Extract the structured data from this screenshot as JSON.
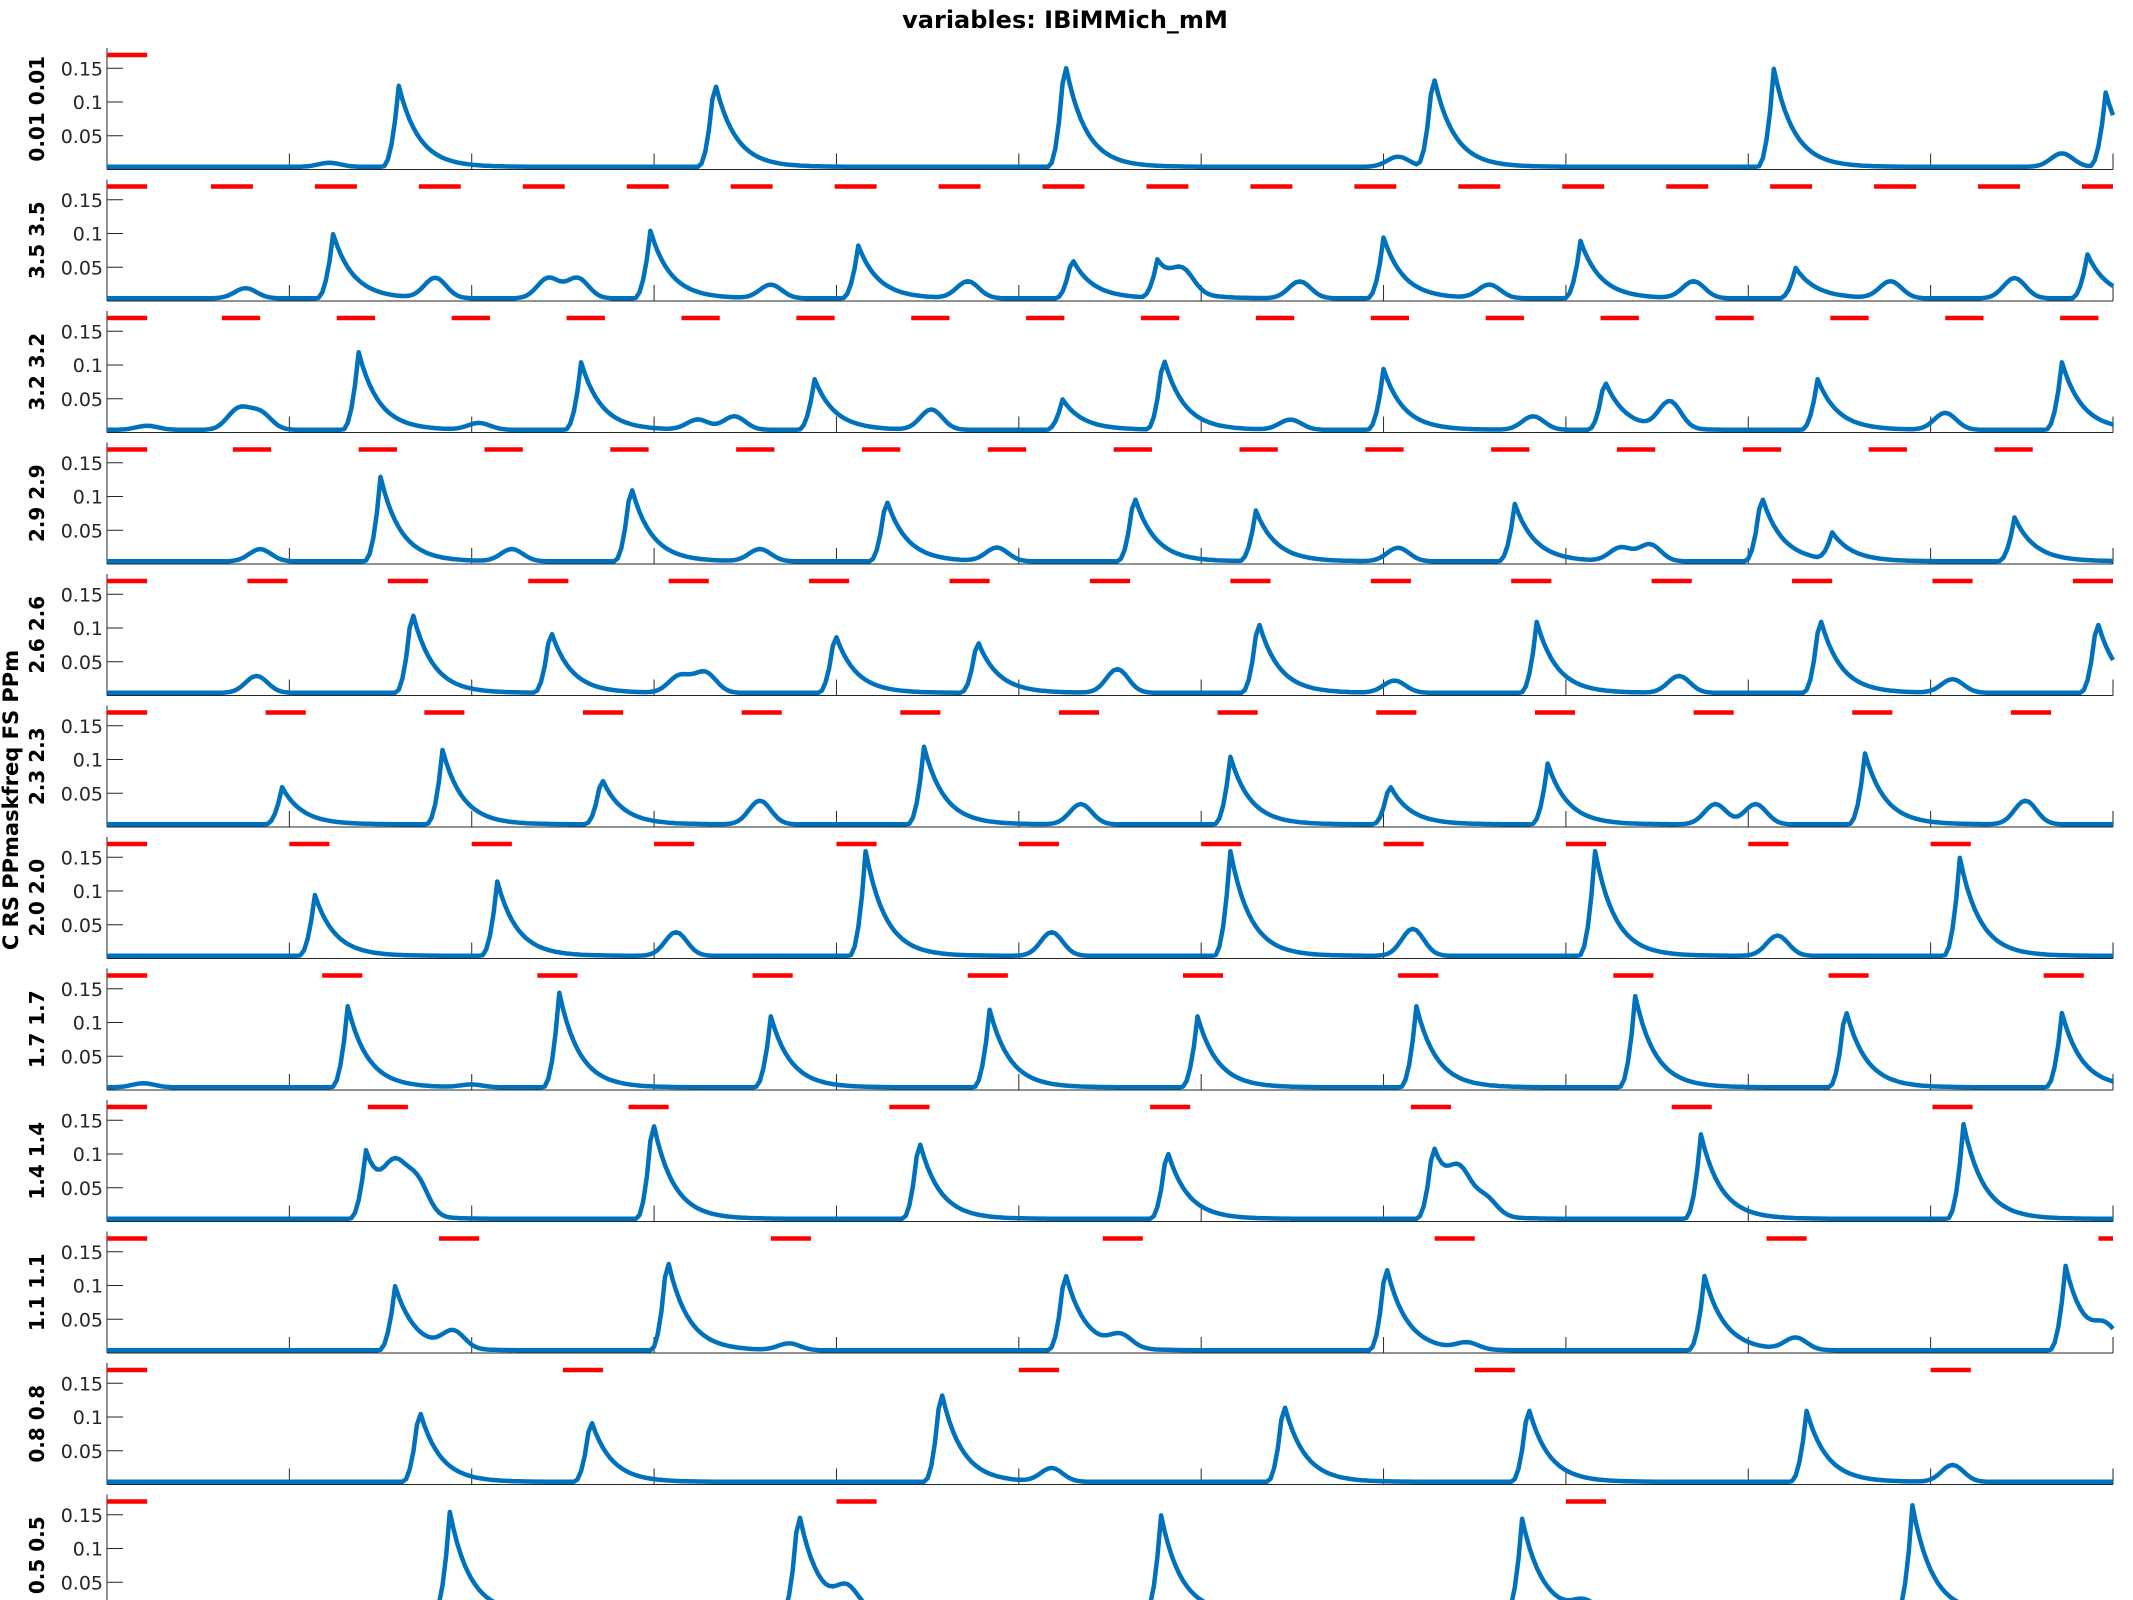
{
  "chart_data": {
    "type": "line",
    "title": "variables: IBiMMich_mM",
    "ylabel": "C RS PPmaskfreq FS PPm",
    "xlim": [
      0,
      5500
    ],
    "ylim": [
      0,
      0.18
    ],
    "xticks": [
      "0",
      "500",
      "1000",
      "1500",
      "2000",
      "2500",
      "3000",
      "3500",
      "4000",
      "4500",
      "5000",
      "5500"
    ],
    "yticks": [
      "0.05",
      "0.1",
      "0.15"
    ],
    "series_color": "#0072BD",
    "stim_color": "#FF0000",
    "panels": [
      {
        "label": "0.01 0.01",
        "baseline": 0.004,
        "peaks": [
          [
            800,
            0.12
          ],
          [
            1665,
            0.13
          ],
          [
            2625,
            0.16
          ],
          [
            3635,
            0.14
          ],
          [
            4570,
            0.145
          ],
          [
            5480,
            0.11
          ]
        ],
        "minor": [
          [
            610,
            0.006
          ],
          [
            3540,
            0.015
          ],
          [
            5360,
            0.02
          ]
        ],
        "stims": [
          [
            0,
            110
          ]
        ]
      },
      {
        "label": "3.5 3.5",
        "baseline": 0.004,
        "peaks": [
          [
            620,
            0.095
          ],
          [
            1490,
            0.1
          ],
          [
            2060,
            0.078
          ],
          [
            2645,
            0.06
          ],
          [
            2880,
            0.055
          ],
          [
            3500,
            0.09
          ],
          [
            4040,
            0.085
          ],
          [
            4630,
            0.045
          ],
          [
            5430,
            0.065
          ]
        ],
        "minor": [
          [
            380,
            0.015
          ],
          [
            900,
            0.03
          ],
          [
            1210,
            0.03
          ],
          [
            1290,
            0.03
          ],
          [
            1820,
            0.02
          ],
          [
            2360,
            0.025
          ],
          [
            2950,
            0.03
          ],
          [
            3270,
            0.025
          ],
          [
            3790,
            0.02
          ],
          [
            4350,
            0.025
          ],
          [
            4890,
            0.025
          ],
          [
            5230,
            0.03
          ]
        ],
        "stims": [
          [
            0,
            110
          ],
          [
            285,
            400
          ],
          [
            570,
            685
          ],
          [
            855,
            970
          ],
          [
            1140,
            1255
          ],
          [
            1425,
            1540
          ],
          [
            1710,
            1825
          ],
          [
            1995,
            2110
          ],
          [
            2280,
            2395
          ],
          [
            2565,
            2680
          ],
          [
            2850,
            2965
          ],
          [
            3135,
            3250
          ],
          [
            3420,
            3535
          ],
          [
            3705,
            3820
          ],
          [
            3990,
            4105
          ],
          [
            4275,
            4390
          ],
          [
            4560,
            4675
          ],
          [
            4845,
            4960
          ],
          [
            5130,
            5245
          ],
          [
            5415,
            5500
          ]
        ]
      },
      {
        "label": "3.2 3.2",
        "baseline": 0.004,
        "peaks": [
          [
            690,
            0.115
          ],
          [
            1300,
            0.1
          ],
          [
            1940,
            0.075
          ],
          [
            2620,
            0.045
          ],
          [
            2895,
            0.11
          ],
          [
            3500,
            0.09
          ],
          [
            4105,
            0.075
          ],
          [
            4690,
            0.075
          ],
          [
            5360,
            0.1
          ]
        ],
        "minor": [
          [
            110,
            0.006
          ],
          [
            360,
            0.03
          ],
          [
            420,
            0.025
          ],
          [
            1020,
            0.01
          ],
          [
            1620,
            0.015
          ],
          [
            1720,
            0.02
          ],
          [
            2260,
            0.03
          ],
          [
            3245,
            0.015
          ],
          [
            3910,
            0.02
          ],
          [
            4285,
            0.04
          ],
          [
            5040,
            0.025
          ]
        ],
        "stims": [
          [
            0,
            110
          ],
          [
            315,
            420
          ],
          [
            630,
            735
          ],
          [
            945,
            1050
          ],
          [
            1260,
            1365
          ],
          [
            1575,
            1680
          ],
          [
            1890,
            1995
          ],
          [
            2205,
            2310
          ],
          [
            2520,
            2625
          ],
          [
            2835,
            2940
          ],
          [
            3150,
            3255
          ],
          [
            3465,
            3570
          ],
          [
            3780,
            3885
          ],
          [
            4095,
            4200
          ],
          [
            4410,
            4515
          ],
          [
            4725,
            4830
          ],
          [
            5040,
            5145
          ],
          [
            5355,
            5460
          ]
        ]
      },
      {
        "label": "2.9 2.9",
        "baseline": 0.004,
        "peaks": [
          [
            750,
            0.125
          ],
          [
            1435,
            0.115
          ],
          [
            2135,
            0.095
          ],
          [
            2815,
            0.1
          ],
          [
            3150,
            0.075
          ],
          [
            3860,
            0.085
          ],
          [
            4535,
            0.1
          ],
          [
            4730,
            0.04
          ],
          [
            5230,
            0.065
          ]
        ],
        "minor": [
          [
            420,
            0.018
          ],
          [
            1110,
            0.018
          ],
          [
            1790,
            0.018
          ],
          [
            2440,
            0.02
          ],
          [
            3540,
            0.02
          ],
          [
            4150,
            0.02
          ],
          [
            4230,
            0.025
          ]
        ],
        "stims": [
          [
            0,
            110
          ],
          [
            345,
            450
          ],
          [
            690,
            795
          ],
          [
            1035,
            1140
          ],
          [
            1380,
            1485
          ],
          [
            1725,
            1830
          ],
          [
            2070,
            2175
          ],
          [
            2415,
            2520
          ],
          [
            2760,
            2865
          ],
          [
            3105,
            3210
          ],
          [
            3450,
            3555
          ],
          [
            3795,
            3900
          ],
          [
            4140,
            4245
          ],
          [
            4485,
            4590
          ],
          [
            4830,
            4935
          ],
          [
            5175,
            5280
          ]
        ]
      },
      {
        "label": "2.6 2.6",
        "baseline": 0.004,
        "peaks": [
          [
            835,
            0.125
          ],
          [
            1215,
            0.095
          ],
          [
            1995,
            0.09
          ],
          [
            2385,
            0.08
          ],
          [
            3155,
            0.11
          ],
          [
            3920,
            0.105
          ],
          [
            4695,
            0.115
          ],
          [
            5455,
            0.11
          ]
        ],
        "minor": [
          [
            410,
            0.025
          ],
          [
            1570,
            0.025
          ],
          [
            1640,
            0.03
          ],
          [
            2770,
            0.035
          ],
          [
            3530,
            0.018
          ],
          [
            4310,
            0.025
          ],
          [
            5060,
            0.02
          ]
        ],
        "stims": [
          [
            0,
            110
          ],
          [
            385,
            495
          ],
          [
            770,
            880
          ],
          [
            1155,
            1265
          ],
          [
            1540,
            1650
          ],
          [
            1925,
            2035
          ],
          [
            2310,
            2420
          ],
          [
            2695,
            2805
          ],
          [
            3080,
            3190
          ],
          [
            3465,
            3575
          ],
          [
            3850,
            3960
          ],
          [
            4235,
            4345
          ],
          [
            4620,
            4730
          ],
          [
            5005,
            5115
          ],
          [
            5390,
            5500
          ]
        ]
      },
      {
        "label": "2.3 2.3",
        "baseline": 0.004,
        "peaks": [
          [
            480,
            0.055
          ],
          [
            920,
            0.11
          ],
          [
            1355,
            0.07
          ],
          [
            2240,
            0.115
          ],
          [
            3080,
            0.1
          ],
          [
            3515,
            0.06
          ],
          [
            3950,
            0.09
          ],
          [
            4820,
            0.105
          ]
        ],
        "minor": [
          [
            1790,
            0.035
          ],
          [
            2670,
            0.03
          ],
          [
            4410,
            0.03
          ],
          [
            4520,
            0.03
          ],
          [
            5260,
            0.035
          ]
        ],
        "stims": [
          [
            0,
            110
          ],
          [
            435,
            545
          ],
          [
            870,
            980
          ],
          [
            1305,
            1415
          ],
          [
            1740,
            1850
          ],
          [
            2175,
            2285
          ],
          [
            2610,
            2720
          ],
          [
            3045,
            3155
          ],
          [
            3480,
            3590
          ],
          [
            3915,
            4025
          ],
          [
            4350,
            4460
          ],
          [
            4785,
            4895
          ],
          [
            5220,
            5330
          ]
        ]
      },
      {
        "label": "2.0 2.0",
        "baseline": 0.004,
        "peaks": [
          [
            570,
            0.09
          ],
          [
            1070,
            0.11
          ],
          [
            2080,
            0.155
          ],
          [
            3080,
            0.155
          ],
          [
            4080,
            0.155
          ],
          [
            5080,
            0.145
          ]
        ],
        "minor": [
          [
            1560,
            0.035
          ],
          [
            2590,
            0.035
          ],
          [
            3580,
            0.04
          ],
          [
            4580,
            0.03
          ]
        ],
        "stims": [
          [
            0,
            110
          ],
          [
            500,
            610
          ],
          [
            1000,
            1110
          ],
          [
            1500,
            1610
          ],
          [
            2000,
            2110
          ],
          [
            2500,
            2610
          ],
          [
            3000,
            3110
          ],
          [
            3500,
            3610
          ],
          [
            4000,
            4110
          ],
          [
            4500,
            4610
          ],
          [
            5000,
            5110
          ]
        ]
      },
      {
        "label": "1.7 1.7",
        "baseline": 0.004,
        "peaks": [
          [
            660,
            0.12
          ],
          [
            1240,
            0.14
          ],
          [
            1820,
            0.105
          ],
          [
            2420,
            0.115
          ],
          [
            2990,
            0.105
          ],
          [
            3590,
            0.12
          ],
          [
            4190,
            0.135
          ],
          [
            4765,
            0.12
          ],
          [
            5360,
            0.11
          ]
        ],
        "minor": [
          [
            100,
            0.006
          ],
          [
            1000,
            0.004
          ]
        ],
        "stims": [
          [
            0,
            110
          ],
          [
            590,
            700
          ],
          [
            1180,
            1290
          ],
          [
            1770,
            1880
          ],
          [
            2360,
            2470
          ],
          [
            2950,
            3060
          ],
          [
            3540,
            3650
          ],
          [
            4130,
            4240
          ],
          [
            4720,
            4830
          ],
          [
            5310,
            5420
          ]
        ]
      },
      {
        "label": "1.4 1.4",
        "baseline": 0.004,
        "peaks": [
          [
            710,
            0.1
          ],
          [
            1495,
            0.15
          ],
          [
            2225,
            0.12
          ],
          [
            2905,
            0.105
          ],
          [
            3635,
            0.11
          ],
          [
            4370,
            0.125
          ],
          [
            5090,
            0.14
          ]
        ],
        "minor": [
          [
            790,
            0.06
          ],
          [
            850,
            0.05
          ],
          [
            3710,
            0.05
          ],
          [
            3780,
            0.025
          ]
        ],
        "stims": [
          [
            0,
            110
          ],
          [
            715,
            825
          ],
          [
            1430,
            1540
          ],
          [
            2145,
            2255
          ],
          [
            2860,
            2970
          ],
          [
            3575,
            3685
          ],
          [
            4290,
            4400
          ],
          [
            5005,
            5115
          ]
        ]
      },
      {
        "label": "1.1 1.1",
        "baseline": 0.004,
        "peaks": [
          [
            790,
            0.095
          ],
          [
            1535,
            0.14
          ],
          [
            2625,
            0.12
          ],
          [
            3505,
            0.13
          ],
          [
            4380,
            0.11
          ],
          [
            5370,
            0.125
          ]
        ],
        "minor": [
          [
            950,
            0.025
          ],
          [
            1870,
            0.01
          ],
          [
            2780,
            0.018
          ],
          [
            3730,
            0.01
          ],
          [
            4630,
            0.018
          ],
          [
            5480,
            0.025
          ]
        ],
        "stims": [
          [
            0,
            110
          ],
          [
            910,
            1020
          ],
          [
            1820,
            1930
          ],
          [
            2730,
            2840
          ],
          [
            3640,
            3750
          ],
          [
            4550,
            4660
          ],
          [
            5460,
            5500
          ]
        ]
      },
      {
        "label": "0.8 0.8",
        "baseline": 0.004,
        "peaks": [
          [
            855,
            0.11
          ],
          [
            1325,
            0.095
          ],
          [
            2285,
            0.14
          ],
          [
            3225,
            0.12
          ],
          [
            3895,
            0.115
          ],
          [
            4660,
            0.105
          ]
        ],
        "minor": [
          [
            2590,
            0.02
          ],
          [
            5060,
            0.025
          ]
        ],
        "stims": [
          [
            0,
            110
          ],
          [
            1250,
            1360
          ],
          [
            2500,
            2610
          ],
          [
            3750,
            3860
          ],
          [
            5000,
            5110
          ]
        ]
      },
      {
        "label": "0.5 0.5",
        "baseline": 0.004,
        "peaks": [
          [
            940,
            0.15
          ],
          [
            1895,
            0.155
          ],
          [
            2890,
            0.145
          ],
          [
            3880,
            0.14
          ],
          [
            4950,
            0.16
          ]
        ],
        "minor": [
          [
            2030,
            0.03
          ],
          [
            4050,
            0.015
          ]
        ],
        "stims": [
          [
            0,
            110
          ],
          [
            2000,
            2110
          ],
          [
            4000,
            4110
          ]
        ]
      }
    ]
  }
}
